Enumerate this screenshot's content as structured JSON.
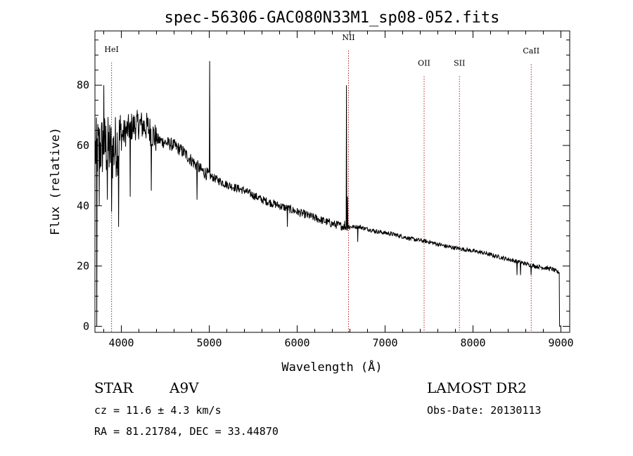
{
  "chart_data": {
    "type": "line",
    "title": "spec-56306-GAC080N33M1_sp08-052.fits",
    "xlabel": "Wavelength (Å)",
    "ylabel": "Flux (relative)",
    "xlim": [
      3700,
      9100
    ],
    "ylim": [
      -2,
      98
    ],
    "xticks": [
      4000,
      5000,
      6000,
      7000,
      8000,
      9000
    ],
    "yticks": [
      0,
      20,
      40,
      60,
      80
    ],
    "continuum": {
      "x": [
        3700,
        3800,
        3900,
        4000,
        4100,
        4200,
        4300,
        4400,
        4500,
        4600,
        4700,
        4800,
        4900,
        5000,
        5200,
        5400,
        5600,
        5800,
        6000,
        6200,
        6400,
        6550,
        6700,
        6900,
        7100,
        7300,
        7500,
        7700,
        7900,
        8100,
        8300,
        8500,
        8700,
        8900,
        8960
      ],
      "y": [
        58,
        60,
        58,
        63,
        66,
        67,
        66,
        62,
        61,
        60,
        58,
        55,
        52,
        50,
        47,
        45,
        42,
        40,
        38,
        36,
        34,
        33,
        33,
        31.5,
        30.5,
        29,
        28,
        26.5,
        25.5,
        24.5,
        23,
        21.5,
        20,
        19,
        18
      ]
    },
    "features": [
      {
        "x": 3720,
        "y": 0
      },
      {
        "x": 3750,
        "y": 40
      },
      {
        "x": 3800,
        "y": 80
      },
      {
        "x": 3840,
        "y": 42
      },
      {
        "x": 3890,
        "y": 38
      },
      {
        "x": 3970,
        "y": 33
      },
      {
        "x": 4102,
        "y": 43
      },
      {
        "x": 4340,
        "y": 45
      },
      {
        "x": 4861,
        "y": 42
      },
      {
        "x": 5007,
        "y": 88
      },
      {
        "x": 5890,
        "y": 33
      },
      {
        "x": 6540,
        "y": 35
      },
      {
        "x": 6563,
        "y": 80
      },
      {
        "x": 6575,
        "y": 43
      },
      {
        "x": 6690,
        "y": 28
      },
      {
        "x": 8500,
        "y": 17
      },
      {
        "x": 8542,
        "y": 17
      },
      {
        "x": 8662,
        "y": 17
      },
      {
        "x": 8990,
        "y": 0
      }
    ],
    "lines": [
      {
        "label": "HeI",
        "wavelength": 3889,
        "label_y": 91
      },
      {
        "label": "NII",
        "wavelength": 6584,
        "label_y": 95
      },
      {
        "label": "OII",
        "wavelength": 7444,
        "label_y": 86.5
      },
      {
        "label": "SII",
        "wavelength": 7846,
        "label_y": 86.5
      },
      {
        "label": "CaII",
        "wavelength": 8662,
        "label_y": 90.5
      }
    ]
  },
  "info": {
    "object_class": "STAR",
    "subclass": "A9V",
    "survey": "LAMOST DR2",
    "cz": "cz = 11.6 ± 4.3 km/s",
    "obs_date": "Obs-Date: 20130113",
    "coords": "RA =  81.21784, DEC =  33.44870"
  },
  "colors": {
    "axis": "#000000",
    "spectrum": "#000000",
    "marker": "#b22222"
  }
}
